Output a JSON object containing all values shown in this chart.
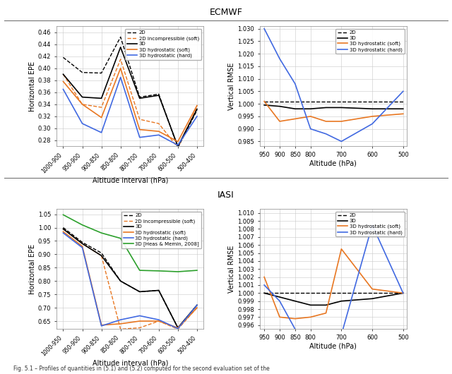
{
  "ecmwf_title": "ECMWF",
  "iasi_title": "IASI",
  "fig_bg": "#ffffff",
  "ecmwf_left": {
    "x_labels": [
      "1000-900",
      "950-900",
      "900-850",
      "850-800",
      "800-700",
      "700-600",
      "600-500",
      "500-400"
    ],
    "ylim": [
      0.27,
      0.47
    ],
    "yticks": [
      0.28,
      0.3,
      0.32,
      0.34,
      0.36,
      0.38,
      0.4,
      0.42,
      0.44,
      0.46
    ],
    "ylabel": "Horizontal EPE",
    "xlabel": "Altitude interval (hPa)",
    "series": [
      {
        "label": "2D",
        "color": "#000000",
        "ls": "--",
        "lw": 1.0,
        "data": [
          0.418,
          0.393,
          0.392,
          0.452,
          0.352,
          0.357,
          0.268,
          0.33
        ]
      },
      {
        "label": "2D incompressible (soft)",
        "color": "#e87722",
        "ls": "--",
        "lw": 1.0,
        "data": [
          0.39,
          0.34,
          0.335,
          0.415,
          0.315,
          0.308,
          0.268,
          0.335
        ]
      },
      {
        "label": "3D",
        "color": "#000000",
        "ls": "-",
        "lw": 1.2,
        "data": [
          0.39,
          0.352,
          0.35,
          0.435,
          0.35,
          0.355,
          0.27,
          0.332
        ]
      },
      {
        "label": "3D hydrostatic (soft)",
        "color": "#e87722",
        "ls": "-",
        "lw": 1.2,
        "data": [
          0.378,
          0.34,
          0.318,
          0.4,
          0.298,
          0.295,
          0.278,
          0.338
        ]
      },
      {
        "label": "3D hydrostatic (hard)",
        "color": "#4169e1",
        "ls": "-",
        "lw": 1.2,
        "data": [
          0.365,
          0.308,
          0.293,
          0.385,
          0.285,
          0.289,
          0.272,
          0.32
        ]
      }
    ]
  },
  "ecmwf_right": {
    "x_vals": [
      950,
      900,
      850,
      800,
      750,
      700,
      600,
      500
    ],
    "xlim": [
      965,
      488
    ],
    "xticks": [
      950,
      900,
      850,
      800,
      700,
      600,
      500
    ],
    "ylim": [
      0.983,
      1.031
    ],
    "yticks": [
      0.985,
      0.99,
      0.995,
      1.0,
      1.005,
      1.01,
      1.015,
      1.02,
      1.025,
      1.03
    ],
    "ylabel": "Vertical RMSE",
    "xlabel": "Altitude (hPa)",
    "series": [
      {
        "label": "2D",
        "color": "#000000",
        "ls": "--",
        "lw": 1.0,
        "data": [
          1.001,
          1.001,
          1.001,
          1.001,
          1.001,
          1.001,
          1.001,
          1.001
        ]
      },
      {
        "label": "3D",
        "color": "#000000",
        "ls": "-",
        "lw": 1.2,
        "data": [
          0.9995,
          0.999,
          0.998,
          0.998,
          0.9985,
          0.9985,
          0.998,
          0.998
        ]
      },
      {
        "label": "3D hydrostatic (soft)",
        "color": "#e87722",
        "ls": "-",
        "lw": 1.2,
        "data": [
          1.001,
          0.993,
          0.994,
          0.995,
          0.993,
          0.993,
          0.995,
          0.996
        ]
      },
      {
        "label": "3D hydrostatic (hard)",
        "color": "#4169e1",
        "ls": "-",
        "lw": 1.2,
        "data": [
          1.03,
          1.018,
          1.008,
          0.99,
          0.988,
          0.985,
          0.992,
          1.005
        ]
      }
    ]
  },
  "iasi_left": {
    "x_labels": [
      "1000-950",
      "950-900",
      "900-850",
      "850-800",
      "800-700",
      "700-600",
      "600-500",
      "500-400"
    ],
    "ylim": [
      0.62,
      1.07
    ],
    "yticks": [
      0.65,
      0.7,
      0.75,
      0.8,
      0.85,
      0.9,
      0.95,
      1.0,
      1.05
    ],
    "ylabel": "Horizontal EPE",
    "xlabel": "Altitude interval (hPa)",
    "series": [
      {
        "label": "2D",
        "color": "#000000",
        "ls": "--",
        "lw": 1.0,
        "data": [
          1.0,
          0.945,
          0.905,
          0.8,
          0.76,
          0.765,
          0.625,
          0.71
        ]
      },
      {
        "label": "2D incompressible (soft)",
        "color": "#e87722",
        "ls": "--",
        "lw": 1.0,
        "data": [
          0.995,
          0.94,
          0.895,
          0.62,
          0.625,
          0.65,
          0.62,
          0.7
        ]
      },
      {
        "label": "3D",
        "color": "#000000",
        "ls": "-",
        "lw": 1.2,
        "data": [
          0.995,
          0.94,
          0.895,
          0.8,
          0.76,
          0.765,
          0.625,
          0.71
        ]
      },
      {
        "label": "3D hydrostatic (soft)",
        "color": "#e87722",
        "ls": "-",
        "lw": 1.2,
        "data": [
          0.985,
          0.93,
          0.635,
          0.64,
          0.65,
          0.65,
          0.625,
          0.7
        ]
      },
      {
        "label": "3D hydrostatic (hard)",
        "color": "#4169e1",
        "ls": "-",
        "lw": 1.2,
        "data": [
          0.98,
          0.925,
          0.632,
          0.655,
          0.67,
          0.655,
          0.622,
          0.71
        ]
      },
      {
        "label": "3D [Heas & Memin, 2008]",
        "color": "#2ca02c",
        "ls": "-",
        "lw": 1.2,
        "data": [
          1.048,
          1.01,
          0.98,
          0.96,
          0.84,
          0.838,
          0.835,
          0.84
        ]
      }
    ]
  },
  "iasi_right": {
    "x_vals": [
      950,
      900,
      850,
      800,
      750,
      700,
      600,
      500
    ],
    "xlim": [
      965,
      488
    ],
    "xticks": [
      950,
      900,
      850,
      800,
      700,
      600,
      500
    ],
    "ylim": [
      0.9955,
      1.0105
    ],
    "yticks": [
      0.996,
      0.997,
      0.998,
      0.999,
      1.0,
      1.001,
      1.002,
      1.003,
      1.004,
      1.005,
      1.006,
      1.007,
      1.008,
      1.009,
      1.01
    ],
    "ylabel": "Vertical RMSE",
    "xlabel": "Altitude (hPa)",
    "series": [
      {
        "label": "2D",
        "color": "#000000",
        "ls": "--",
        "lw": 1.0,
        "data": [
          1.0,
          1.0,
          1.0,
          1.0,
          1.0,
          1.0,
          1.0,
          1.0
        ]
      },
      {
        "label": "3D",
        "color": "#000000",
        "ls": "-",
        "lw": 1.2,
        "data": [
          1.0,
          0.9995,
          0.999,
          0.9985,
          0.9985,
          0.999,
          0.9993,
          1.0
        ]
      },
      {
        "label": "3D hydrostatic (soft)",
        "color": "#e87722",
        "ls": "-",
        "lw": 1.2,
        "data": [
          1.002,
          0.997,
          0.9968,
          0.997,
          0.9975,
          1.0055,
          1.0005,
          1.0
        ]
      },
      {
        "label": "3D hydrostatic (hard)",
        "color": "#4169e1",
        "ls": "-",
        "lw": 1.2,
        "data": [
          1.001,
          0.999,
          0.9955,
          0.9948,
          0.9948,
          0.9948,
          1.0085,
          1.0
        ]
      }
    ]
  },
  "caption": "Fig. 5.1 – Profiles of quantities in (5.1) and (5.2) computed for the second evaluation set of the",
  "grid_color": "#c8c8c8",
  "grid_alpha": 1.0
}
